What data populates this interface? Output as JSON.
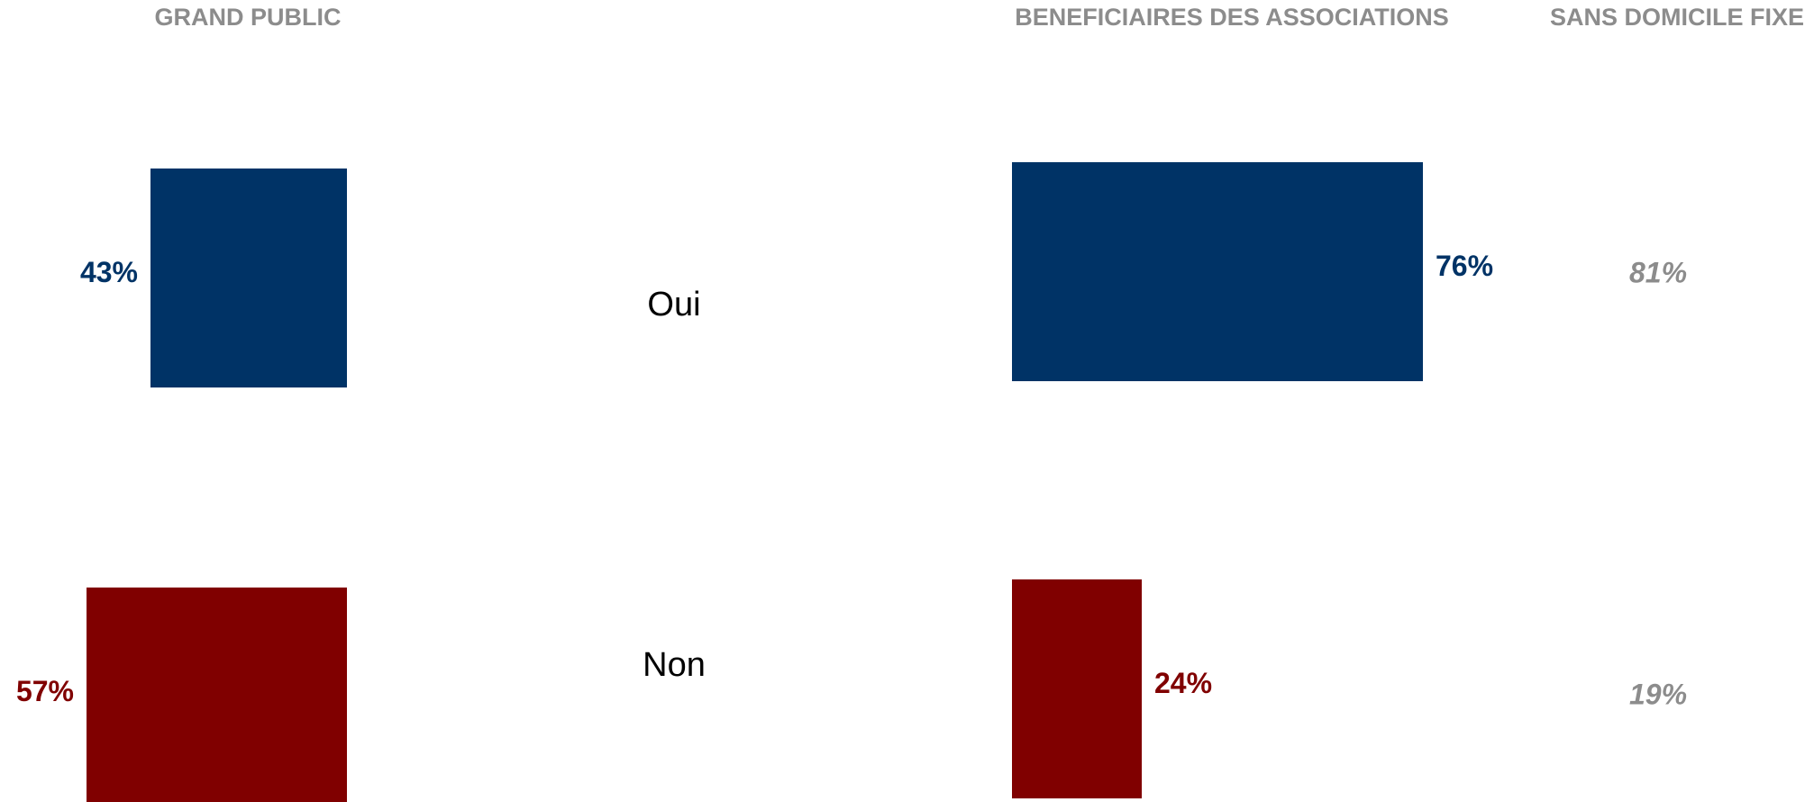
{
  "chart_data": {
    "type": "bar",
    "categories": [
      "Oui",
      "Non"
    ],
    "colors": [
      "#003366",
      "#800000"
    ],
    "series": [
      {
        "name": "GRAND PUBLIC",
        "values": [
          43,
          57
        ],
        "value_labels": [
          "43%",
          "57%"
        ]
      },
      {
        "name": "BENEFICIAIRES DES ASSOCIATIONS",
        "values": [
          76,
          24
        ],
        "value_labels": [
          "76%",
          "24%"
        ]
      },
      {
        "name": "SANS DOMICILE FIXE",
        "color": "#8c8c8c",
        "values": [
          81,
          19
        ],
        "value_labels": [
          "81%",
          "19%"
        ]
      }
    ]
  }
}
